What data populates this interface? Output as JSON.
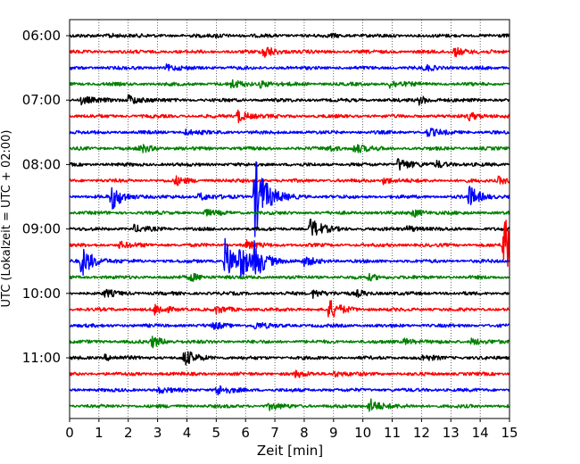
{
  "chart_data": {
    "type": "line",
    "subtype": "helicorder",
    "xlabel": "Zeit  [min]",
    "ylabel": "UTC (Lokalzeit = UTC + 02:00)",
    "xlim": [
      0,
      15
    ],
    "x_ticks": [
      "0",
      "1",
      "2",
      "3",
      "4",
      "5",
      "6",
      "7",
      "8",
      "9",
      "10",
      "11",
      "12",
      "13",
      "14",
      "15"
    ],
    "y_tick_labels": [
      "06:00",
      "07:00",
      "08:00",
      "09:00",
      "10:00",
      "11:00"
    ],
    "minutes_per_trace": 15,
    "trace_colors": [
      "#000000",
      "#ff0000",
      "#0000ff",
      "#008000"
    ],
    "grid": "vertical dotted at each minute",
    "traces": [
      {
        "start": "06:00",
        "events": [
          {
            "t": 1.3,
            "a": 0.8
          },
          {
            "t": 5.0,
            "a": 0.6
          },
          {
            "t": 8.9,
            "a": 0.5
          }
        ]
      },
      {
        "start": "06:15",
        "events": [
          {
            "t": 6.6,
            "a": 2.5
          },
          {
            "t": 13.1,
            "a": 1.8
          }
        ]
      },
      {
        "start": "06:30",
        "events": [
          {
            "t": 3.3,
            "a": 1.0
          },
          {
            "t": 12.1,
            "a": 1.0
          }
        ]
      },
      {
        "start": "06:45",
        "events": [
          {
            "t": 5.5,
            "a": 1.5
          },
          {
            "t": 6.5,
            "a": 1.2
          },
          {
            "t": 10.9,
            "a": 1.5
          }
        ]
      },
      {
        "start": "07:00",
        "events": [
          {
            "t": 2.0,
            "a": 2.0
          },
          {
            "t": 11.9,
            "a": 1.5
          },
          {
            "t": 0.4,
            "a": 1.5
          }
        ]
      },
      {
        "start": "07:15",
        "events": [
          {
            "t": 5.7,
            "a": 2.5
          },
          {
            "t": 13.6,
            "a": 1.5
          }
        ]
      },
      {
        "start": "07:30",
        "events": [
          {
            "t": 12.2,
            "a": 1.5
          },
          {
            "t": 3.9,
            "a": 1.0
          }
        ]
      },
      {
        "start": "07:45",
        "events": [
          {
            "t": 2.4,
            "a": 1.5
          },
          {
            "t": 9.7,
            "a": 1.8
          },
          {
            "t": 8.8,
            "a": 1.0
          }
        ]
      },
      {
        "start": "08:00",
        "events": [
          {
            "t": 11.2,
            "a": 2.5
          },
          {
            "t": 12.5,
            "a": 1.2
          }
        ]
      },
      {
        "start": "08:15",
        "events": [
          {
            "t": 3.6,
            "a": 1.5
          },
          {
            "t": 10.7,
            "a": 1.2
          },
          {
            "t": 14.6,
            "a": 1.5
          }
        ]
      },
      {
        "start": "08:30",
        "events": [
          {
            "t": 1.4,
            "a": 5.0
          },
          {
            "t": 4.4,
            "a": 1.5
          },
          {
            "t": 13.6,
            "a": 4.0
          },
          {
            "t": 6.3,
            "a": 16.0
          }
        ]
      },
      {
        "start": "08:45",
        "events": [
          {
            "t": 11.7,
            "a": 1.5
          },
          {
            "t": 4.6,
            "a": 1.0
          }
        ]
      },
      {
        "start": "09:00",
        "events": [
          {
            "t": 8.2,
            "a": 4.0
          },
          {
            "t": 2.2,
            "a": 1.2
          },
          {
            "t": 11.5,
            "a": 1.2
          }
        ]
      },
      {
        "start": "09:15",
        "events": [
          {
            "t": 14.8,
            "a": 16.0
          },
          {
            "t": 6.0,
            "a": 1.5
          },
          {
            "t": 1.7,
            "a": 1.2
          }
        ]
      },
      {
        "start": "09:30",
        "events": [
          {
            "t": 0.4,
            "a": 6.0
          },
          {
            "t": 5.3,
            "a": 8.0
          },
          {
            "t": 5.8,
            "a": 5.0
          },
          {
            "t": 6.3,
            "a": 5.5
          },
          {
            "t": 8.0,
            "a": 1.5
          }
        ]
      },
      {
        "start": "09:45",
        "events": [
          {
            "t": 4.1,
            "a": 1.5
          },
          {
            "t": 10.2,
            "a": 1.0
          }
        ]
      },
      {
        "start": "10:00",
        "events": [
          {
            "t": 1.2,
            "a": 1.2
          },
          {
            "t": 8.3,
            "a": 1.5
          },
          {
            "t": 9.8,
            "a": 1.0
          }
        ]
      },
      {
        "start": "10:15",
        "events": [
          {
            "t": 8.8,
            "a": 4.0
          },
          {
            "t": 2.9,
            "a": 2.0
          },
          {
            "t": 5.0,
            "a": 1.2
          }
        ]
      },
      {
        "start": "10:30",
        "events": [
          {
            "t": 4.9,
            "a": 1.2
          },
          {
            "t": 6.3,
            "a": 1.2
          }
        ]
      },
      {
        "start": "10:45",
        "events": [
          {
            "t": 2.8,
            "a": 2.0
          },
          {
            "t": 11.4,
            "a": 1.2
          },
          {
            "t": 13.7,
            "a": 1.2
          }
        ]
      },
      {
        "start": "11:00",
        "events": [
          {
            "t": 3.9,
            "a": 3.0
          },
          {
            "t": 1.2,
            "a": 1.0
          },
          {
            "t": 12.0,
            "a": 1.0
          }
        ]
      },
      {
        "start": "11:15",
        "events": [
          {
            "t": 9.0,
            "a": 1.0
          },
          {
            "t": 7.7,
            "a": 1.0
          }
        ]
      },
      {
        "start": "11:30",
        "events": [
          {
            "t": 5.0,
            "a": 2.0
          },
          {
            "t": 3.0,
            "a": 1.0
          }
        ]
      },
      {
        "start": "11:45",
        "events": [
          {
            "t": 10.2,
            "a": 3.0
          },
          {
            "t": 6.8,
            "a": 1.2
          }
        ]
      }
    ]
  }
}
